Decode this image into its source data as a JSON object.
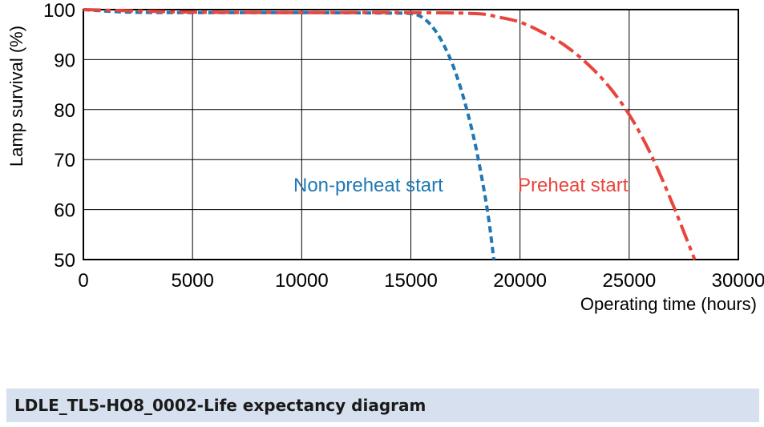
{
  "chart_data": {
    "type": "line",
    "title": "",
    "xlabel": "Operating time (hours)",
    "ylabel": "Lamp survival  (%)",
    "xlim": [
      0,
      30000
    ],
    "ylim": [
      50,
      100
    ],
    "xticks": [
      0,
      5000,
      10000,
      15000,
      20000,
      25000,
      30000
    ],
    "yticks": [
      50,
      60,
      70,
      80,
      90,
      100
    ],
    "grid": true,
    "series": [
      {
        "name": "Non-preheat start",
        "color": "#1f78b4",
        "style": "dashed",
        "x": [
          0,
          2000,
          5000,
          10000,
          14000,
          15000,
          15500,
          16000,
          16500,
          17000,
          17500,
          18000,
          18500,
          18800
        ],
        "y": [
          100,
          99.5,
          99.4,
          99.4,
          99.3,
          99.2,
          98.5,
          96.5,
          93,
          88,
          81,
          72,
          60,
          50
        ]
      },
      {
        "name": "Preheat start",
        "color": "#e8453c",
        "style": "dashdot",
        "x": [
          0,
          5000,
          10000,
          15000,
          18000,
          19000,
          20000,
          21000,
          22000,
          23000,
          24000,
          25000,
          26000,
          27000,
          28000
        ],
        "y": [
          100,
          99.5,
          99.4,
          99.4,
          99.2,
          98.5,
          97.5,
          95.5,
          93,
          89.5,
          85,
          79,
          71,
          61,
          50
        ]
      }
    ]
  },
  "caption": "LDLE_TL5-HO8_0002-Life expectancy diagram"
}
